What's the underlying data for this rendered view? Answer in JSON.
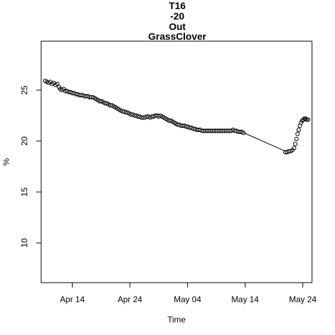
{
  "chart_data": {
    "type": "scatter",
    "title_lines": [
      "T16",
      "-20",
      "Out",
      "GrassClover"
    ],
    "xlabel": "Time",
    "ylabel": "%",
    "x_ticks": [
      {
        "label": "Apr 14",
        "day": 13
      },
      {
        "label": "Apr 24",
        "day": 23
      },
      {
        "label": "May 04",
        "day": 33
      },
      {
        "label": "May 14",
        "day": 43
      },
      {
        "label": "May 24",
        "day": 53
      }
    ],
    "y_ticks": [
      10,
      15,
      20,
      25
    ],
    "xlim": [
      7.6,
      54.6
    ],
    "ylim": [
      6.1,
      29.8
    ],
    "points": [
      [
        8.3,
        25.9
      ],
      [
        8.6,
        25.8
      ],
      [
        8.9,
        25.7
      ],
      [
        9.2,
        25.8
      ],
      [
        9.5,
        25.6
      ],
      [
        9.8,
        25.7
      ],
      [
        10.1,
        25.5
      ],
      [
        10.4,
        25.6
      ],
      [
        10.7,
        25.3
      ],
      [
        10.9,
        25.1
      ],
      [
        11.2,
        25.0
      ],
      [
        11.5,
        25.1
      ],
      [
        11.8,
        24.9
      ],
      [
        12.1,
        24.9
      ],
      [
        12.4,
        24.8
      ],
      [
        12.7,
        24.8
      ],
      [
        13.0,
        24.7
      ],
      [
        13.3,
        24.7
      ],
      [
        13.6,
        24.6
      ],
      [
        13.9,
        24.6
      ],
      [
        14.2,
        24.5
      ],
      [
        14.5,
        24.5
      ],
      [
        14.8,
        24.5
      ],
      [
        15.1,
        24.4
      ],
      [
        15.4,
        24.4
      ],
      [
        15.7,
        24.4
      ],
      [
        16.0,
        24.3
      ],
      [
        16.3,
        24.3
      ],
      [
        16.6,
        24.3
      ],
      [
        16.9,
        24.2
      ],
      [
        17.2,
        24.1
      ],
      [
        17.5,
        24.0
      ],
      [
        17.8,
        23.9
      ],
      [
        18.1,
        23.9
      ],
      [
        18.4,
        23.8
      ],
      [
        18.7,
        23.7
      ],
      [
        19.0,
        23.7
      ],
      [
        19.3,
        23.6
      ],
      [
        19.6,
        23.5
      ],
      [
        19.9,
        23.5
      ],
      [
        20.2,
        23.4
      ],
      [
        20.5,
        23.3
      ],
      [
        20.8,
        23.2
      ],
      [
        21.1,
        23.1
      ],
      [
        21.4,
        23.0
      ],
      [
        21.7,
        22.9
      ],
      [
        22.0,
        22.9
      ],
      [
        22.3,
        22.8
      ],
      [
        22.6,
        22.8
      ],
      [
        22.9,
        22.7
      ],
      [
        23.2,
        22.6
      ],
      [
        23.5,
        22.6
      ],
      [
        23.8,
        22.5
      ],
      [
        24.1,
        22.5
      ],
      [
        24.4,
        22.4
      ],
      [
        24.7,
        22.4
      ],
      [
        25.0,
        22.3
      ],
      [
        25.3,
        22.3
      ],
      [
        25.6,
        22.3
      ],
      [
        25.9,
        22.4
      ],
      [
        26.2,
        22.4
      ],
      [
        26.5,
        22.3
      ],
      [
        26.8,
        22.4
      ],
      [
        27.1,
        22.4
      ],
      [
        27.4,
        22.5
      ],
      [
        27.7,
        22.5
      ],
      [
        28.0,
        22.4
      ],
      [
        28.3,
        22.5
      ],
      [
        28.6,
        22.4
      ],
      [
        28.9,
        22.3
      ],
      [
        29.2,
        22.2
      ],
      [
        29.5,
        22.1
      ],
      [
        29.8,
        22.0
      ],
      [
        30.1,
        22.0
      ],
      [
        30.4,
        21.9
      ],
      [
        30.7,
        21.8
      ],
      [
        31.0,
        21.7
      ],
      [
        31.3,
        21.6
      ],
      [
        31.6,
        21.6
      ],
      [
        31.9,
        21.5
      ],
      [
        32.2,
        21.5
      ],
      [
        32.5,
        21.5
      ],
      [
        32.8,
        21.4
      ],
      [
        33.1,
        21.4
      ],
      [
        33.4,
        21.3
      ],
      [
        33.7,
        21.3
      ],
      [
        34.0,
        21.2
      ],
      [
        34.3,
        21.2
      ],
      [
        34.6,
        21.1
      ],
      [
        34.9,
        21.1
      ],
      [
        35.2,
        21.1
      ],
      [
        35.5,
        21.0
      ],
      [
        35.8,
        21.0
      ],
      [
        36.1,
        21.0
      ],
      [
        36.4,
        21.0
      ],
      [
        36.7,
        21.0
      ],
      [
        37.0,
        21.0
      ],
      [
        37.3,
        21.0
      ],
      [
        37.6,
        21.0
      ],
      [
        37.9,
        21.0
      ],
      [
        38.2,
        21.0
      ],
      [
        38.5,
        21.0
      ],
      [
        38.8,
        21.0
      ],
      [
        39.1,
        21.0
      ],
      [
        39.4,
        21.0
      ],
      [
        39.7,
        21.0
      ],
      [
        40.0,
        21.0
      ],
      [
        40.3,
        21.0
      ],
      [
        40.6,
        21.0
      ],
      [
        40.9,
        21.1
      ],
      [
        41.2,
        21.0
      ],
      [
        41.5,
        21.0
      ],
      [
        41.8,
        20.9
      ],
      [
        42.1,
        20.9
      ],
      [
        42.4,
        20.9
      ],
      [
        42.7,
        20.8
      ],
      [
        50.0,
        18.9
      ],
      [
        50.3,
        18.9
      ],
      [
        50.6,
        19.0
      ],
      [
        50.9,
        19.0
      ],
      [
        51.2,
        19.1
      ],
      [
        51.5,
        19.3
      ],
      [
        51.7,
        19.7
      ],
      [
        51.9,
        20.2
      ],
      [
        52.1,
        20.7
      ],
      [
        52.3,
        21.1
      ],
      [
        52.5,
        21.5
      ],
      [
        52.7,
        21.8
      ],
      [
        52.9,
        22.0
      ],
      [
        53.1,
        22.1
      ],
      [
        53.3,
        22.2
      ],
      [
        53.5,
        22.2
      ],
      [
        53.7,
        22.1
      ],
      [
        53.9,
        22.1
      ]
    ],
    "gap_line": [
      [
        42.8,
        20.8
      ],
      [
        50.0,
        19.0
      ]
    ],
    "grid": false,
    "legend": "none"
  }
}
